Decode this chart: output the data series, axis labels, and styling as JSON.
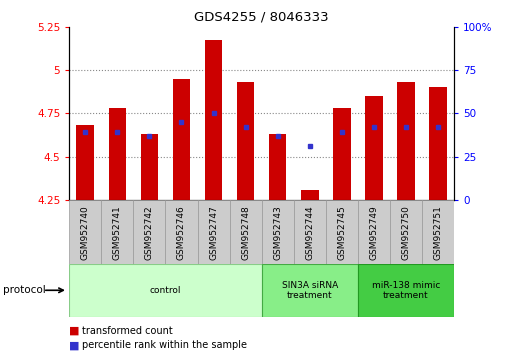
{
  "title": "GDS4255 / 8046333",
  "samples": [
    "GSM952740",
    "GSM952741",
    "GSM952742",
    "GSM952746",
    "GSM952747",
    "GSM952748",
    "GSM952743",
    "GSM952744",
    "GSM952745",
    "GSM952749",
    "GSM952750",
    "GSM952751"
  ],
  "red_values": [
    4.68,
    4.78,
    4.63,
    4.95,
    5.17,
    4.93,
    4.63,
    4.31,
    4.78,
    4.85,
    4.93,
    4.9
  ],
  "blue_values": [
    4.64,
    4.64,
    4.62,
    4.7,
    4.75,
    4.67,
    4.62,
    4.56,
    4.64,
    4.67,
    4.67,
    4.67
  ],
  "ylim_left": [
    4.25,
    5.25
  ],
  "ylim_right": [
    0,
    100
  ],
  "yticks_left": [
    4.25,
    4.5,
    4.75,
    5.0,
    5.25
  ],
  "ytick_labels_left": [
    "4.25",
    "4.5",
    "4.75",
    "5",
    "5.25"
  ],
  "yticks_right": [
    0,
    25,
    50,
    75,
    100
  ],
  "ytick_labels_right": [
    "0",
    "25",
    "50",
    "75",
    "100%"
  ],
  "grid_lines": [
    4.5,
    4.75,
    5.0
  ],
  "bar_color": "#cc0000",
  "blue_color": "#3333cc",
  "protocol_groups": [
    {
      "label": "control",
      "start": 0,
      "end": 5,
      "color": "#ccffcc",
      "edge": "#88cc88"
    },
    {
      "label": "SIN3A siRNA\ntreatment",
      "start": 6,
      "end": 8,
      "color": "#88ee88",
      "edge": "#44aa44"
    },
    {
      "label": "miR-138 mimic\ntreatment",
      "start": 9,
      "end": 11,
      "color": "#44cc44",
      "edge": "#229922"
    }
  ],
  "bar_width": 0.55,
  "legend_red_label": "transformed count",
  "legend_blue_label": "percentile rank within the sample",
  "protocol_label": "protocol",
  "tick_area_bg": "#cccccc",
  "tick_area_edge": "#999999"
}
